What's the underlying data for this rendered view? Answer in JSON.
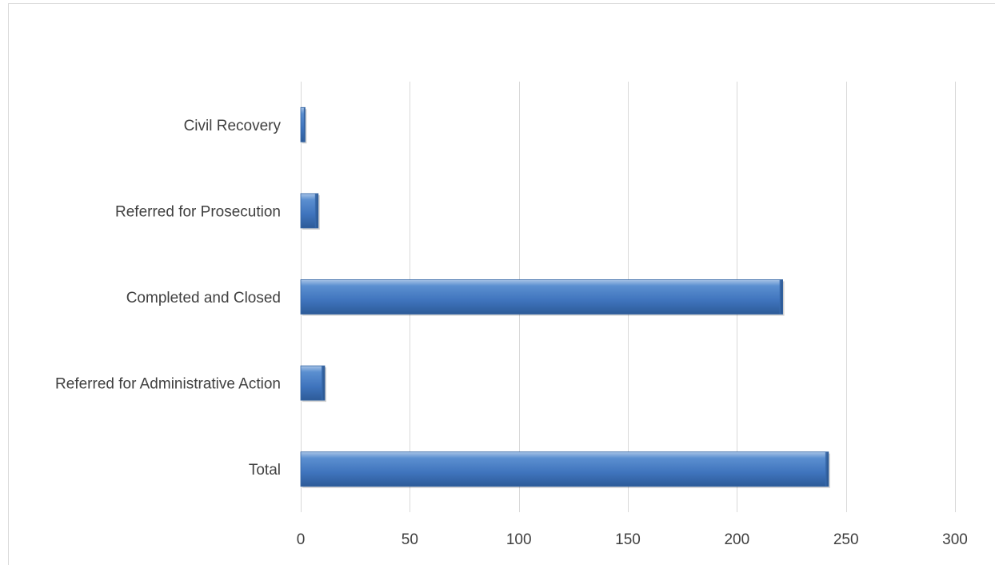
{
  "chart_data": {
    "type": "bar",
    "orientation": "horizontal",
    "title": "",
    "xlabel": "",
    "ylabel": "",
    "categories": [
      "Civil Recovery",
      "Referred for Prosecution",
      "Completed and Closed",
      "Referred for Administrative Action",
      "Total"
    ],
    "values": [
      2,
      8,
      221,
      11,
      242
    ],
    "xlim": [
      0,
      300
    ],
    "x_ticks": [
      "0",
      "50",
      "100",
      "150",
      "200",
      "250",
      "300"
    ],
    "grid": "vertical",
    "legend": "none",
    "bar_color": "#4f81bd"
  }
}
